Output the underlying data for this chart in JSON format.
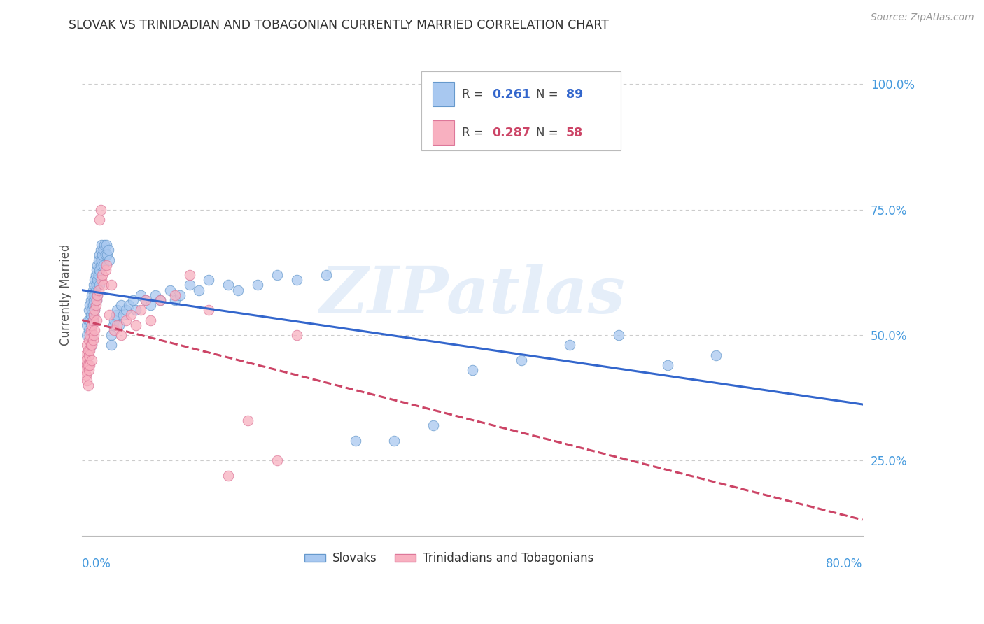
{
  "title": "SLOVAK VS TRINIDADIAN AND TOBAGONIAN CURRENTLY MARRIED CORRELATION CHART",
  "source": "Source: ZipAtlas.com",
  "ylabel": "Currently Married",
  "watermark": "ZIPatlas",
  "xmin": 0.0,
  "xmax": 0.8,
  "ymin": 0.1,
  "ymax": 1.06,
  "scatter_color_slovak": "#a8c8f0",
  "scatter_edge_slovak": "#6699cc",
  "scatter_color_trinidadian": "#f8b0c0",
  "scatter_edge_trinidadian": "#dd7799",
  "line_color_slovak": "#3366cc",
  "line_color_trinidadian": "#cc4466",
  "background_color": "#ffffff",
  "grid_color": "#cccccc",
  "title_color": "#333333",
  "axis_label_color": "#4499dd",
  "ytick_color": "#4499dd",
  "slovak_R": "0.261",
  "slovak_N": "89",
  "trinidadian_R": "0.287",
  "trinidadian_N": "58",
  "slovak_x": [
    0.005,
    0.005,
    0.006,
    0.007,
    0.007,
    0.008,
    0.008,
    0.009,
    0.009,
    0.009,
    0.01,
    0.01,
    0.01,
    0.01,
    0.01,
    0.011,
    0.011,
    0.011,
    0.012,
    0.012,
    0.012,
    0.013,
    0.013,
    0.013,
    0.014,
    0.014,
    0.015,
    0.015,
    0.015,
    0.016,
    0.016,
    0.016,
    0.017,
    0.017,
    0.018,
    0.018,
    0.018,
    0.019,
    0.019,
    0.02,
    0.02,
    0.021,
    0.022,
    0.022,
    0.023,
    0.024,
    0.025,
    0.026,
    0.027,
    0.028,
    0.03,
    0.03,
    0.032,
    0.033,
    0.035,
    0.036,
    0.038,
    0.04,
    0.042,
    0.045,
    0.048,
    0.052,
    0.055,
    0.06,
    0.065,
    0.07,
    0.075,
    0.08,
    0.09,
    0.095,
    0.1,
    0.11,
    0.12,
    0.13,
    0.15,
    0.16,
    0.18,
    0.2,
    0.22,
    0.25,
    0.28,
    0.32,
    0.36,
    0.4,
    0.45,
    0.5,
    0.55,
    0.6,
    0.65
  ],
  "slovak_y": [
    0.52,
    0.5,
    0.53,
    0.55,
    0.51,
    0.56,
    0.53,
    0.57,
    0.54,
    0.5,
    0.58,
    0.55,
    0.52,
    0.5,
    0.48,
    0.59,
    0.56,
    0.53,
    0.6,
    0.57,
    0.54,
    0.61,
    0.58,
    0.55,
    0.62,
    0.59,
    0.63,
    0.6,
    0.57,
    0.64,
    0.61,
    0.58,
    0.65,
    0.62,
    0.66,
    0.63,
    0.6,
    0.67,
    0.64,
    0.68,
    0.65,
    0.66,
    0.67,
    0.64,
    0.68,
    0.66,
    0.68,
    0.66,
    0.67,
    0.65,
    0.5,
    0.48,
    0.52,
    0.53,
    0.54,
    0.55,
    0.52,
    0.56,
    0.54,
    0.55,
    0.56,
    0.57,
    0.55,
    0.58,
    0.57,
    0.56,
    0.58,
    0.57,
    0.59,
    0.57,
    0.58,
    0.6,
    0.59,
    0.61,
    0.6,
    0.59,
    0.6,
    0.62,
    0.61,
    0.62,
    0.29,
    0.29,
    0.32,
    0.43,
    0.45,
    0.48,
    0.5,
    0.44,
    0.46
  ],
  "trinidadian_x": [
    0.003,
    0.003,
    0.004,
    0.004,
    0.005,
    0.005,
    0.005,
    0.006,
    0.006,
    0.006,
    0.007,
    0.007,
    0.007,
    0.008,
    0.008,
    0.008,
    0.009,
    0.009,
    0.01,
    0.01,
    0.01,
    0.011,
    0.011,
    0.012,
    0.012,
    0.013,
    0.013,
    0.014,
    0.015,
    0.015,
    0.016,
    0.017,
    0.018,
    0.019,
    0.02,
    0.021,
    0.022,
    0.024,
    0.025,
    0.028,
    0.03,
    0.033,
    0.036,
    0.04,
    0.045,
    0.05,
    0.055,
    0.06,
    0.065,
    0.07,
    0.08,
    0.095,
    0.11,
    0.13,
    0.15,
    0.17,
    0.2,
    0.22
  ],
  "trinidadian_y": [
    0.46,
    0.43,
    0.45,
    0.42,
    0.48,
    0.44,
    0.41,
    0.47,
    0.44,
    0.4,
    0.49,
    0.46,
    0.43,
    0.5,
    0.47,
    0.44,
    0.51,
    0.48,
    0.52,
    0.48,
    0.45,
    0.53,
    0.49,
    0.54,
    0.5,
    0.55,
    0.51,
    0.56,
    0.57,
    0.53,
    0.58,
    0.59,
    0.73,
    0.75,
    0.61,
    0.62,
    0.6,
    0.63,
    0.64,
    0.54,
    0.6,
    0.51,
    0.52,
    0.5,
    0.53,
    0.54,
    0.52,
    0.55,
    0.57,
    0.53,
    0.57,
    0.58,
    0.62,
    0.55,
    0.22,
    0.33,
    0.25,
    0.5
  ]
}
